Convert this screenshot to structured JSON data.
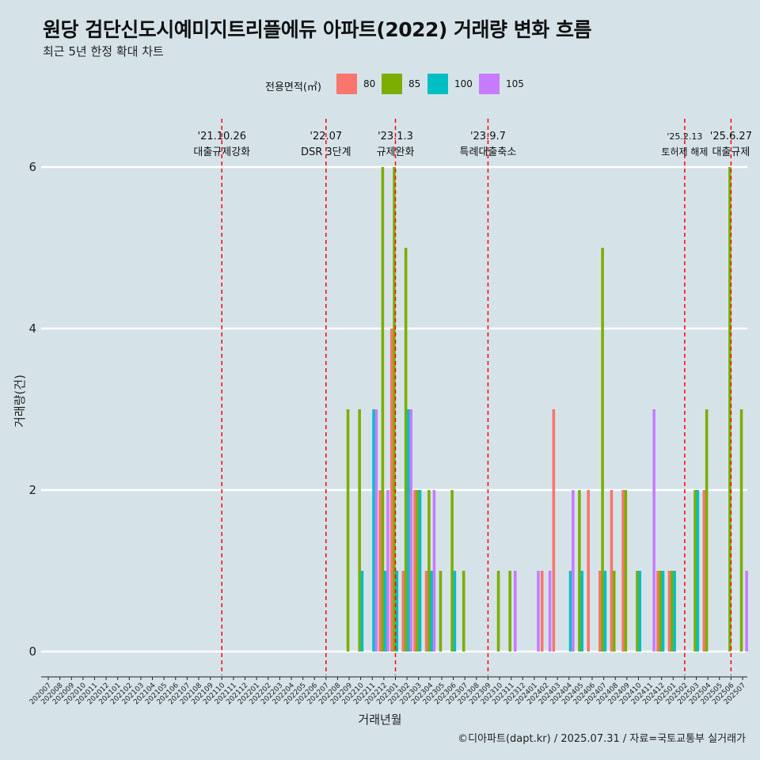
{
  "title": "원당 검단신도시예미지트리플에듀 아파트(2022) 거래량 변화 흐름",
  "subtitle": "최근 5년 한정 확대 차트",
  "caption": "©디아파트(dapt.kr) / 2025.07.31 / 자료=국토교통부 실거래가",
  "colors": {
    "background": "#d5e3e9",
    "grid": "#ffffff",
    "vline": "#ff0000"
  },
  "legend": {
    "title": "전용면적(㎡)",
    "items": [
      {
        "label": "80",
        "color": "#f8766d"
      },
      {
        "label": "85",
        "color": "#7cae00"
      },
      {
        "label": "100",
        "color": "#00bfc4"
      },
      {
        "label": "105",
        "color": "#c77cff"
      }
    ]
  },
  "chart_data": {
    "type": "bar",
    "xlabel": "거래년월",
    "ylabel": "거래량(건)",
    "ylim": [
      0,
      6.3
    ],
    "yticks": [
      0,
      2,
      4,
      6
    ],
    "grid": true,
    "legend_position": "top",
    "categories": [
      "202007",
      "202008",
      "202009",
      "202010",
      "202011",
      "202012",
      "202101",
      "202102",
      "202103",
      "202104",
      "202105",
      "202106",
      "202107",
      "202108",
      "202109",
      "202110",
      "202111",
      "202112",
      "202201",
      "202202",
      "202203",
      "202204",
      "202205",
      "202206",
      "202207",
      "202208",
      "202209",
      "202210",
      "202211",
      "202212",
      "202301",
      "202302",
      "202303",
      "202304",
      "202305",
      "202306",
      "202307",
      "202308",
      "202309",
      "202310",
      "202311",
      "202312",
      "202401",
      "202402",
      "202403",
      "202404",
      "202405",
      "202406",
      "202407",
      "202408",
      "202409",
      "202410",
      "202411",
      "202412",
      "202501",
      "202502",
      "202503",
      "202504",
      "202505",
      "202506",
      "202507"
    ],
    "series": [
      {
        "name": "80",
        "values": [
          0,
          0,
          0,
          0,
          0,
          0,
          0,
          0,
          0,
          0,
          0,
          0,
          0,
          0,
          0,
          0,
          0,
          0,
          0,
          0,
          0,
          0,
          0,
          0,
          0,
          0,
          0,
          0,
          0,
          2,
          4,
          1,
          2,
          1,
          0,
          0,
          0,
          0,
          0,
          0,
          0,
          0,
          0,
          1,
          3,
          0,
          0,
          2,
          1,
          2,
          2,
          0,
          0,
          1,
          1,
          0,
          0,
          2,
          0,
          0,
          0
        ]
      },
      {
        "name": "85",
        "values": [
          0,
          0,
          0,
          0,
          0,
          0,
          0,
          0,
          0,
          0,
          0,
          0,
          0,
          0,
          0,
          0,
          0,
          0,
          0,
          0,
          0,
          0,
          0,
          0,
          0,
          0,
          3,
          3,
          0,
          6,
          6,
          5,
          2,
          2,
          1,
          2,
          1,
          0,
          0,
          1,
          1,
          0,
          0,
          0,
          0,
          0,
          2,
          0,
          5,
          1,
          2,
          1,
          0,
          1,
          1,
          0,
          2,
          3,
          0,
          6,
          3
        ]
      },
      {
        "name": "100",
        "values": [
          0,
          0,
          0,
          0,
          0,
          0,
          0,
          0,
          0,
          0,
          0,
          0,
          0,
          0,
          0,
          0,
          0,
          0,
          0,
          0,
          0,
          0,
          0,
          0,
          0,
          0,
          0,
          1,
          3,
          1,
          1,
          3,
          2,
          1,
          0,
          1,
          0,
          0,
          0,
          0,
          0,
          0,
          0,
          0,
          0,
          1,
          1,
          0,
          1,
          0,
          0,
          1,
          0,
          1,
          1,
          0,
          2,
          0,
          0,
          0,
          0
        ]
      },
      {
        "name": "105",
        "values": [
          0,
          0,
          0,
          0,
          0,
          0,
          0,
          0,
          0,
          0,
          0,
          0,
          0,
          0,
          0,
          0,
          0,
          0,
          0,
          0,
          0,
          0,
          0,
          0,
          0,
          0,
          0,
          0,
          3,
          2,
          0,
          3,
          0,
          2,
          0,
          0,
          0,
          0,
          0,
          0,
          1,
          0,
          1,
          1,
          0,
          2,
          0,
          0,
          0,
          0,
          0,
          0,
          3,
          0,
          0,
          0,
          0,
          0,
          0,
          0,
          1
        ]
      }
    ],
    "annotations": [
      {
        "date": "'21.10.26",
        "label": "대출규제강화",
        "category": "202110"
      },
      {
        "date": "'22.07",
        "label": "DSR 3단계",
        "category": "202207"
      },
      {
        "date": "'23.1.3",
        "label": "규제완화",
        "category": "202301"
      },
      {
        "date": "'23.9.7",
        "label": "특례대출축소",
        "category": "202309"
      },
      {
        "date": "'25.2.13",
        "label": "토허제 해제",
        "category": "202502"
      },
      {
        "date": "'25.6.27",
        "label": "대출규제",
        "category": "202506"
      }
    ]
  }
}
